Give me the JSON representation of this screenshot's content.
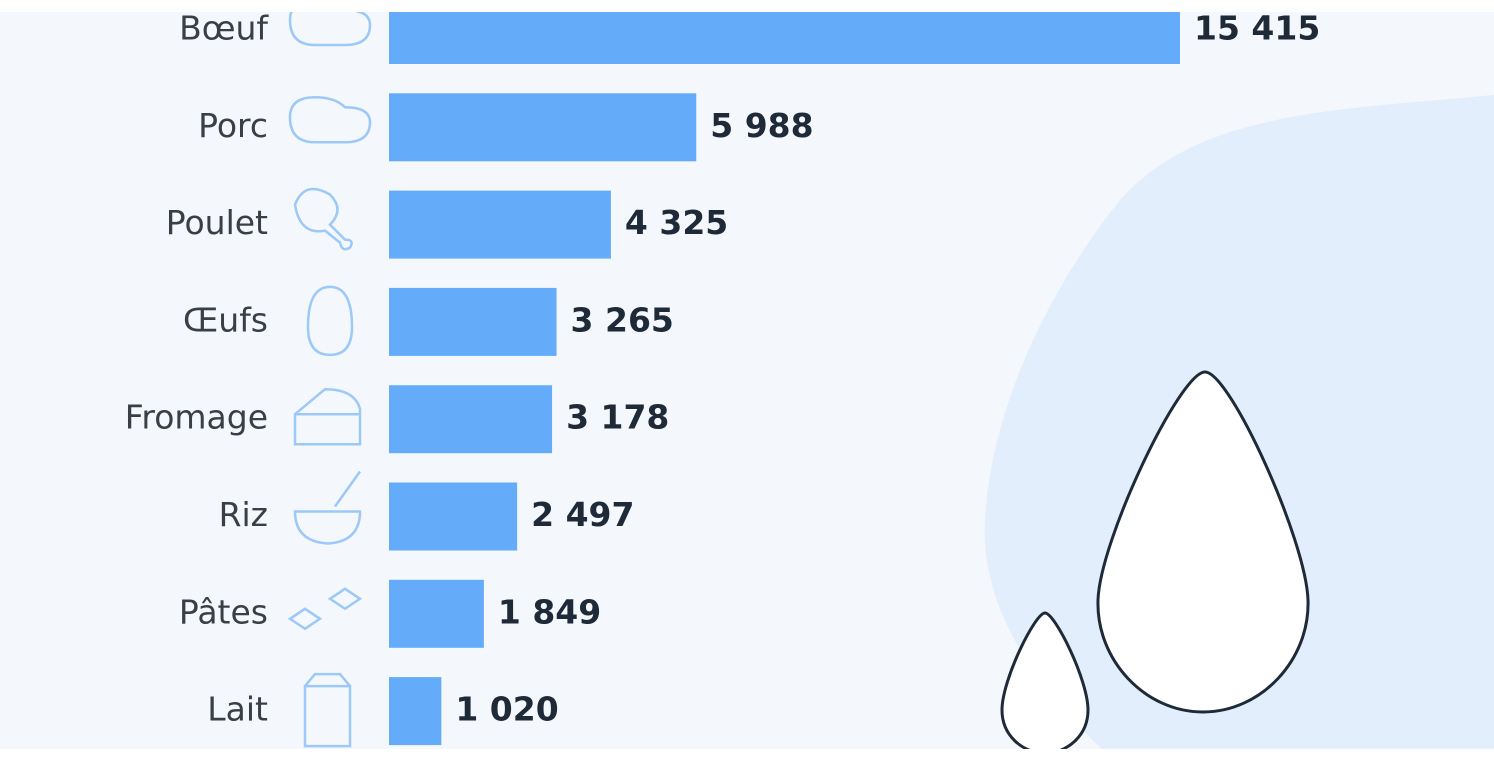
{
  "chart_data": {
    "type": "bar",
    "orientation": "horizontal",
    "categories": [
      "Bœuf",
      "Porc",
      "Poulet",
      "Œufs",
      "Fromage",
      "Riz",
      "Pâtes",
      "Lait"
    ],
    "values": [
      15415,
      5988,
      4325,
      3265,
      3178,
      2497,
      1849,
      1020
    ],
    "value_labels": [
      "15 415",
      "5 988",
      "4 325",
      "3 265",
      "3 178",
      "2 497",
      "1 849",
      "1 020"
    ],
    "color": "#64acf9"
  }
}
